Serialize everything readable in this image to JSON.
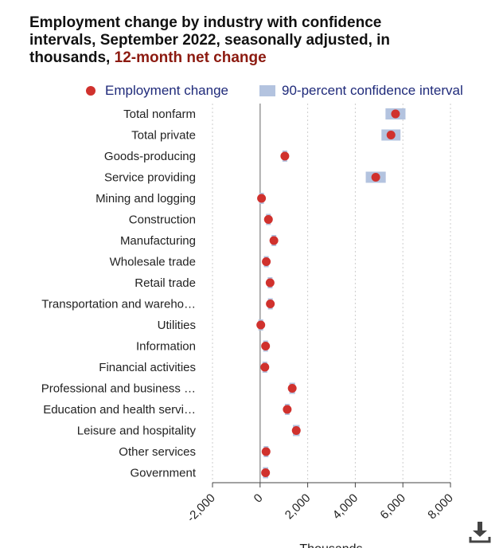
{
  "chart_data": {
    "type": "scatter",
    "title": "Employment change by industry with confidence intervals, September 2022, seasonally adjusted, in thousands,",
    "subtitle": "12-month net change",
    "xlabel": "Thousands",
    "xlim": [
      -2000,
      8000
    ],
    "xticks": [
      "-2,000",
      "0",
      "2,000",
      "4,000",
      "6,000",
      "8,000"
    ],
    "xtick_values": [
      -2000,
      0,
      2000,
      4000,
      6000,
      8000
    ],
    "grid": "vertical dotted",
    "legend": "top",
    "categories": [
      "Total nonfarm",
      "Total private",
      "Goods-producing",
      "Service providing",
      "Mining and logging",
      "Construction",
      "Manufacturing",
      "Wholesale trade",
      "Retail trade",
      "Transportation and wareho…",
      "Utilities",
      "Information",
      "Financial activities",
      "Professional and business …",
      "Education and health servi…",
      "Leisure and hospitality",
      "Other services",
      "Government"
    ],
    "series": [
      {
        "name": "Employment change",
        "values": [
          5690,
          5500,
          1040,
          4860,
          60,
          350,
          580,
          260,
          420,
          430,
          30,
          230,
          200,
          1350,
          1140,
          1520,
          250,
          230
        ]
      },
      {
        "name": "90-percent confidence interval",
        "ranges": [
          [
            5270,
            6110
          ],
          [
            5100,
            5900
          ],
          [
            960,
            1120
          ],
          [
            4440,
            5280
          ],
          [
            20,
            100
          ],
          [
            270,
            430
          ],
          [
            520,
            640
          ],
          [
            200,
            320
          ],
          [
            340,
            500
          ],
          [
            350,
            510
          ],
          [
            10,
            50
          ],
          [
            140,
            320
          ],
          [
            130,
            270
          ],
          [
            1230,
            1470
          ],
          [
            1050,
            1230
          ],
          [
            1380,
            1660
          ],
          [
            190,
            310
          ],
          [
            120,
            340
          ]
        ]
      }
    ],
    "colors": {
      "point": "#d0312d",
      "interval": "#b3c3df",
      "zero_line": "#999999",
      "grid": "#cccccc"
    }
  },
  "ui": {
    "download_icon": "download-icon"
  }
}
